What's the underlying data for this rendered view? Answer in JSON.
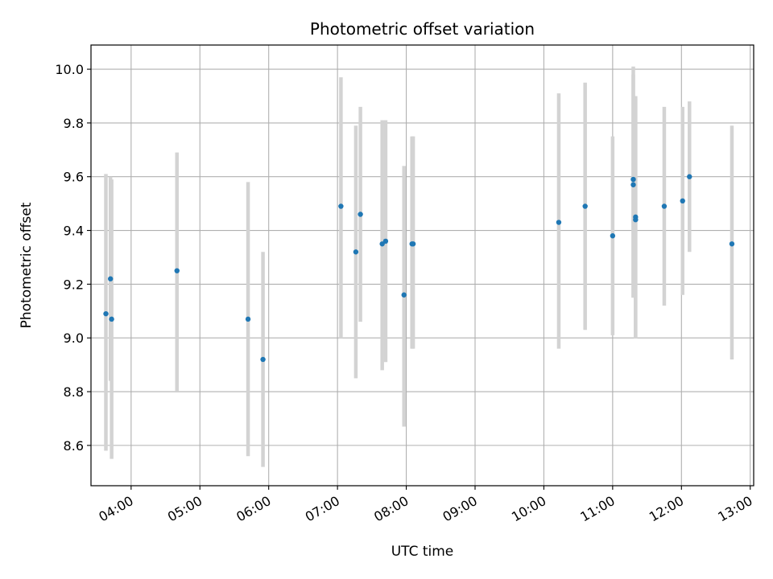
{
  "chart_data": {
    "type": "scatter",
    "title": "Photometric offset variation",
    "xlabel": "UTC time",
    "ylabel": "Photometric offset",
    "x_unit": "UTC time (HH:MM)",
    "xlim": [
      "03:25",
      "13:03"
    ],
    "ylim": [
      8.45,
      10.09
    ],
    "grid": true,
    "xticks": [
      "04:00",
      "05:00",
      "06:00",
      "07:00",
      "08:00",
      "09:00",
      "10:00",
      "11:00",
      "12:00",
      "13:00"
    ],
    "yticks": [
      8.6,
      8.8,
      9.0,
      9.2,
      9.4,
      9.6,
      9.8,
      10.0
    ],
    "ytick_labels": [
      "8.6",
      "8.8",
      "9.0",
      "9.2",
      "9.4",
      "9.6",
      "9.8",
      "10.0"
    ],
    "errorbar_color": "#d3d3d3",
    "marker_color": "#1f77b4",
    "points": [
      {
        "x": "03:38",
        "y": 9.09,
        "ymin": 8.58,
        "ymax": 9.61
      },
      {
        "x": "03:42",
        "y": 9.22,
        "ymin": 8.84,
        "ymax": 9.6
      },
      {
        "x": "03:43",
        "y": 9.07,
        "ymin": 8.55,
        "ymax": 9.59
      },
      {
        "x": "04:40",
        "y": 9.25,
        "ymin": 8.8,
        "ymax": 9.69
      },
      {
        "x": "05:42",
        "y": 9.07,
        "ymin": 8.56,
        "ymax": 9.58
      },
      {
        "x": "05:55",
        "y": 8.92,
        "ymin": 8.52,
        "ymax": 9.32
      },
      {
        "x": "07:03",
        "y": 9.49,
        "ymin": 9.0,
        "ymax": 9.97
      },
      {
        "x": "07:16",
        "y": 9.32,
        "ymin": 8.85,
        "ymax": 9.79
      },
      {
        "x": "07:20",
        "y": 9.46,
        "ymin": 9.06,
        "ymax": 9.86
      },
      {
        "x": "07:39",
        "y": 9.35,
        "ymin": 8.88,
        "ymax": 9.81
      },
      {
        "x": "07:42",
        "y": 9.36,
        "ymin": 8.91,
        "ymax": 9.81
      },
      {
        "x": "07:58",
        "y": 9.16,
        "ymin": 8.67,
        "ymax": 9.64
      },
      {
        "x": "08:05",
        "y": 9.35,
        "ymin": 8.96,
        "ymax": 9.75
      },
      {
        "x": "08:06",
        "y": 9.35,
        "ymin": 8.96,
        "ymax": 9.75
      },
      {
        "x": "10:13",
        "y": 9.43,
        "ymin": 8.96,
        "ymax": 9.91
      },
      {
        "x": "10:36",
        "y": 9.49,
        "ymin": 9.03,
        "ymax": 9.95
      },
      {
        "x": "11:00",
        "y": 9.38,
        "ymin": 9.01,
        "ymax": 9.75
      },
      {
        "x": "11:18",
        "y": 9.59,
        "ymin": 9.15,
        "ymax": 10.01
      },
      {
        "x": "11:18",
        "y": 9.57,
        "ymin": 9.15,
        "ymax": 9.98
      },
      {
        "x": "11:20",
        "y": 9.45,
        "ymin": 9.0,
        "ymax": 9.9
      },
      {
        "x": "11:20",
        "y": 9.44,
        "ymin": 9.0,
        "ymax": 9.89
      },
      {
        "x": "11:45",
        "y": 9.49,
        "ymin": 9.12,
        "ymax": 9.86
      },
      {
        "x": "12:01",
        "y": 9.51,
        "ymin": 9.16,
        "ymax": 9.86
      },
      {
        "x": "12:07",
        "y": 9.6,
        "ymin": 9.32,
        "ymax": 9.88
      },
      {
        "x": "12:44",
        "y": 9.35,
        "ymin": 8.92,
        "ymax": 9.79
      }
    ]
  }
}
